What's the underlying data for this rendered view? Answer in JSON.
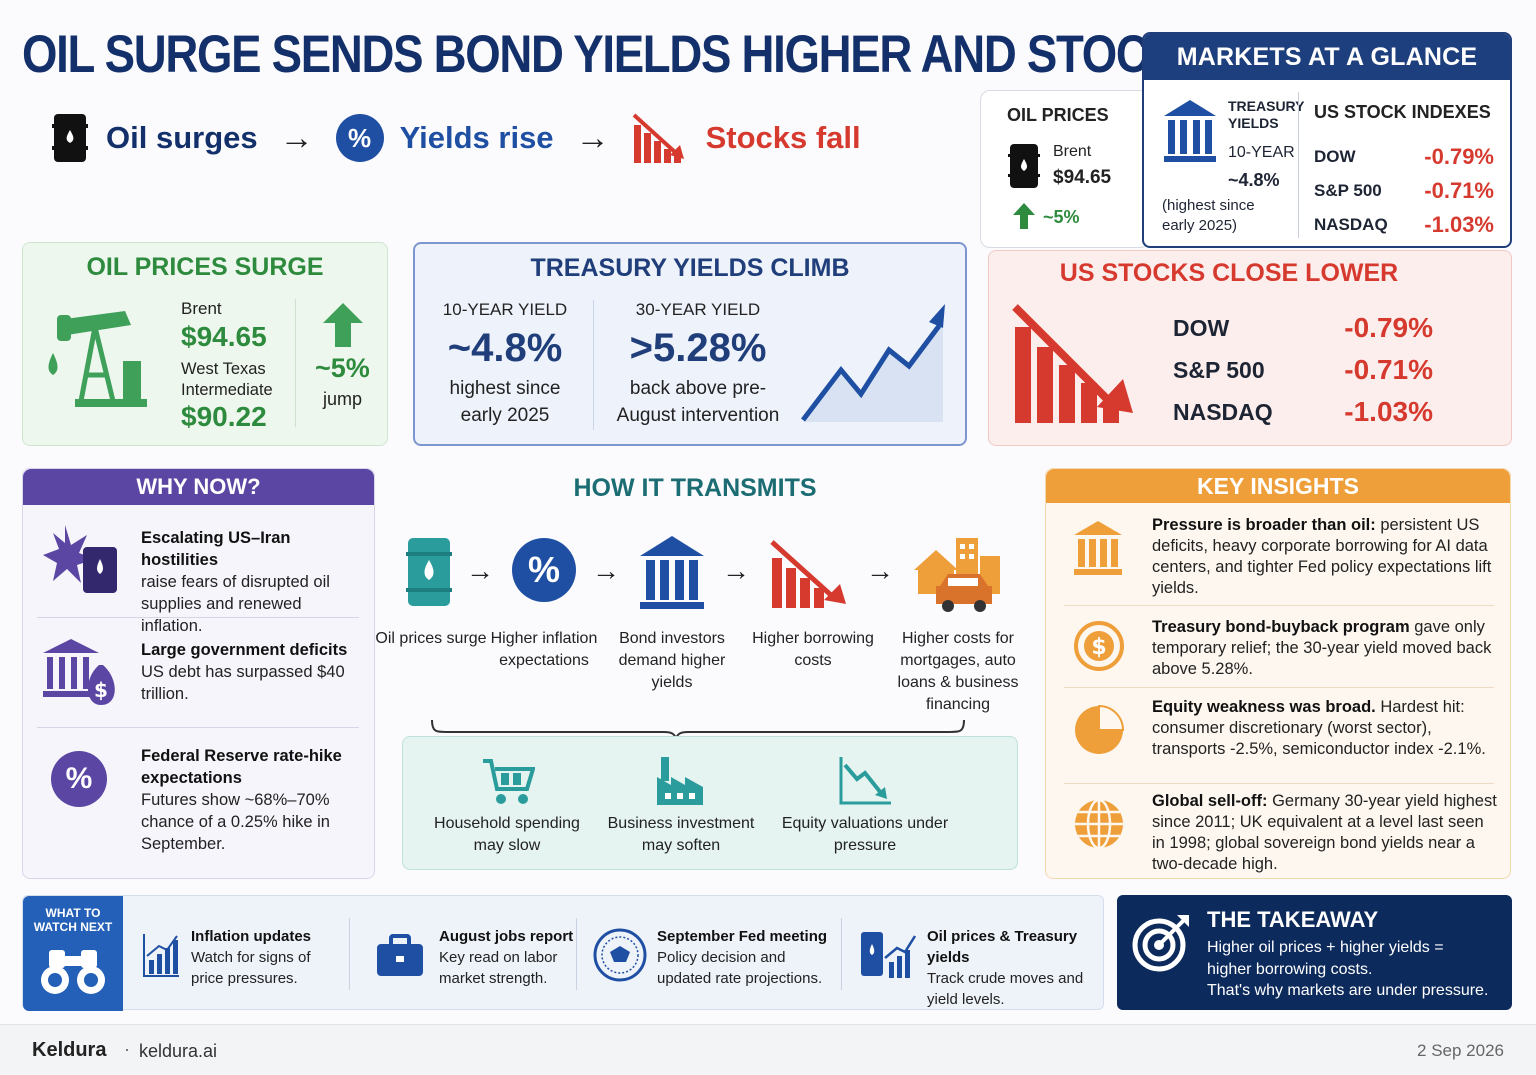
{
  "headline": "OIL SURGE SENDS BOND YIELDS HIGHER AND STOCKS LOWER",
  "flow": {
    "oil": "Oil surges",
    "yields": "Yields rise",
    "stocks": "Stocks fall",
    "arrow": "→",
    "pct_symbol": "%"
  },
  "glance": {
    "title": "MARKETS AT A GLANCE",
    "oil_label": "OIL PRICES",
    "brent_label": "Brent",
    "brent_value": "$94.65",
    "oil_change": "~5%",
    "treasury_label_1": "TREASURY",
    "treasury_label_2": "YIELDS",
    "tenor": "10-YEAR",
    "tenor_value": "~4.8%",
    "tenor_note": "(highest since early 2025)",
    "indexes_label": "US STOCK INDEXES",
    "indexes": [
      {
        "name": "DOW",
        "change": "-0.79%"
      },
      {
        "name": "S&P 500",
        "change": "-0.71%"
      },
      {
        "name": "NASDAQ",
        "change": "-1.03%"
      }
    ]
  },
  "oil_card": {
    "title": "OIL PRICES SURGE",
    "brent_label": "Brent",
    "brent_value": "$94.65",
    "wti_label_1": "West Texas",
    "wti_label_2": "Intermediate",
    "wti_value": "$90.22",
    "jump_value": "~5%",
    "jump_label": "jump"
  },
  "yield_card": {
    "title": "TREASURY YIELDS CLIMB",
    "y10_label": "10-YEAR YIELD",
    "y10_value": "~4.8%",
    "y10_note_1": "highest since",
    "y10_note_2": "early 2025",
    "y30_label": "30-YEAR YIELD",
    "y30_value": ">5.28%",
    "y30_note_1": "back above pre-",
    "y30_note_2": "August intervention"
  },
  "stocks_card": {
    "title": "US STOCKS CLOSE LOWER",
    "rows": [
      {
        "name": "DOW",
        "change": "-0.79%"
      },
      {
        "name": "S&P 500",
        "change": "-0.71%"
      },
      {
        "name": "NASDAQ",
        "change": "-1.03%"
      }
    ]
  },
  "why": {
    "title": "WHY NOW?",
    "items": [
      {
        "title": "Escalating US–Iran hostilities",
        "desc": "raise fears of disrupted oil supplies and renewed inflation."
      },
      {
        "title": "Large government deficits",
        "desc": "US debt has surpassed $40 trillion."
      },
      {
        "title": "Federal Reserve rate-hike expectations",
        "desc": "Futures show ~68%–70% chance of a 0.25% hike in September."
      }
    ]
  },
  "how": {
    "title": "HOW IT TRANSMITS",
    "steps": [
      "Oil prices surge",
      "Higher inflation expectations",
      "Bond investors demand higher yields",
      "Higher borrowing costs",
      "Higher costs for mortgages, auto loans & business financing"
    ],
    "effects": [
      "Household spending may slow",
      "Business investment may soften",
      "Equity valuations under pressure"
    ]
  },
  "insights": {
    "title": "KEY INSIGHTS",
    "items": [
      {
        "bold": "Pressure is broader than oil:",
        "text": " persistent US deficits, heavy corporate borrowing for AI data centers, and tighter Fed policy expectations lift yields."
      },
      {
        "bold": "Treasury bond-buyback program",
        "text": " gave only temporary relief; the 30-year yield moved back above 5.28%."
      },
      {
        "bold": "Equity weakness was broad.",
        "text": " Hardest hit: consumer discretionary (worst sector), transports -2.5%, semiconductor index -2.1%."
      },
      {
        "bold": "Global sell-off:",
        "text": " Germany 30-year yield highest since 2011; UK equivalent at a level last seen in 1998; global sovereign bond yields near a two-decade high."
      }
    ]
  },
  "watch": {
    "badge_1": "WHAT TO",
    "badge_2": "WATCH NEXT",
    "items": [
      {
        "title": "Inflation updates",
        "desc": "Watch for signs of price pressures."
      },
      {
        "title": "August jobs report",
        "desc": "Key read on labor market strength."
      },
      {
        "title": "September Fed meeting",
        "desc": "Policy decision and updated rate projections."
      },
      {
        "title": "Oil prices & Treasury yields",
        "desc": "Track crude moves and yield levels."
      }
    ]
  },
  "takeaway": {
    "title": "THE TAKEAWAY",
    "line1": "Higher oil prices + higher yields =",
    "line2": "higher borrowing costs.",
    "line3": "That's why markets are under pressure."
  },
  "footer": {
    "brand": "Keldura",
    "separator": "·",
    "site": "keldura.ai",
    "date": "2 Sep 2026"
  },
  "colors": {
    "navy": "#13306b",
    "blue": "#1f4fa3",
    "red": "#d63a2f",
    "green": "#2e8b3e",
    "purple": "#5b46a3",
    "orange": "#ef9f3a",
    "teal": "#1c6d73"
  }
}
